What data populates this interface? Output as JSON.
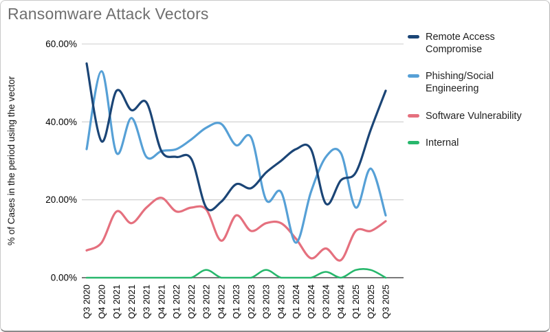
{
  "chart_data": {
    "type": "line",
    "title": "Ransomware Attack Vectors",
    "xlabel": "",
    "ylabel": "% of Cases in the period using the vector",
    "ylim": [
      0,
      60
    ],
    "yticks": [
      0,
      20,
      40,
      60
    ],
    "ytick_labels": [
      "0.00%",
      "20.00%",
      "40.00%",
      "60.00%"
    ],
    "grid": true,
    "smooth": true,
    "legend_position": "right",
    "categories": [
      "Q3 2020",
      "Q4 2020",
      "Q1 2021",
      "Q2 2021",
      "Q3 2021",
      "Q4 2021",
      "Q1 2022",
      "Q2 2022",
      "Q3 2022",
      "Q4 2022",
      "Q1 2023",
      "Q2 2023",
      "Q3 2023",
      "Q4 2023",
      "Q1 2024",
      "Q2 2024",
      "Q3 2024",
      "Q4 2024",
      "Q1 2025",
      "Q2 2025",
      "Q3 2025"
    ],
    "series": [
      {
        "name": "Remote Access Compromise",
        "color": "#1b4576",
        "values": [
          55,
          35,
          48,
          43,
          45,
          32.5,
          31,
          30.5,
          18,
          19.5,
          24,
          23,
          27,
          30,
          33,
          33,
          19,
          25,
          27,
          38,
          48
        ]
      },
      {
        "name": "Phishing/Social Engineering",
        "color": "#56a0d6",
        "values": [
          33,
          53,
          32,
          41,
          31,
          32.5,
          33,
          35.5,
          38.5,
          39.5,
          34,
          36,
          20,
          22,
          9,
          22,
          31,
          32,
          18,
          28,
          16
        ]
      },
      {
        "name": "Software Vulnerability",
        "color": "#e5707e",
        "values": [
          7,
          9,
          17,
          14,
          18,
          20.5,
          17,
          18,
          17.5,
          9.5,
          16,
          12,
          14,
          14,
          10,
          5,
          7.5,
          4.5,
          12,
          12,
          14.5
        ]
      },
      {
        "name": "Internal",
        "color": "#27b76c",
        "values": [
          0,
          0,
          0,
          0,
          0,
          0,
          0,
          0,
          2,
          0,
          0,
          0,
          2,
          0,
          0,
          0,
          1.5,
          0,
          2,
          2,
          0
        ]
      }
    ],
    "colors": {
      "grid": "#cccccc",
      "zero_axis": "#4d4d4d",
      "tick_text": "#000000",
      "title_text": "#6f6f6f"
    }
  }
}
